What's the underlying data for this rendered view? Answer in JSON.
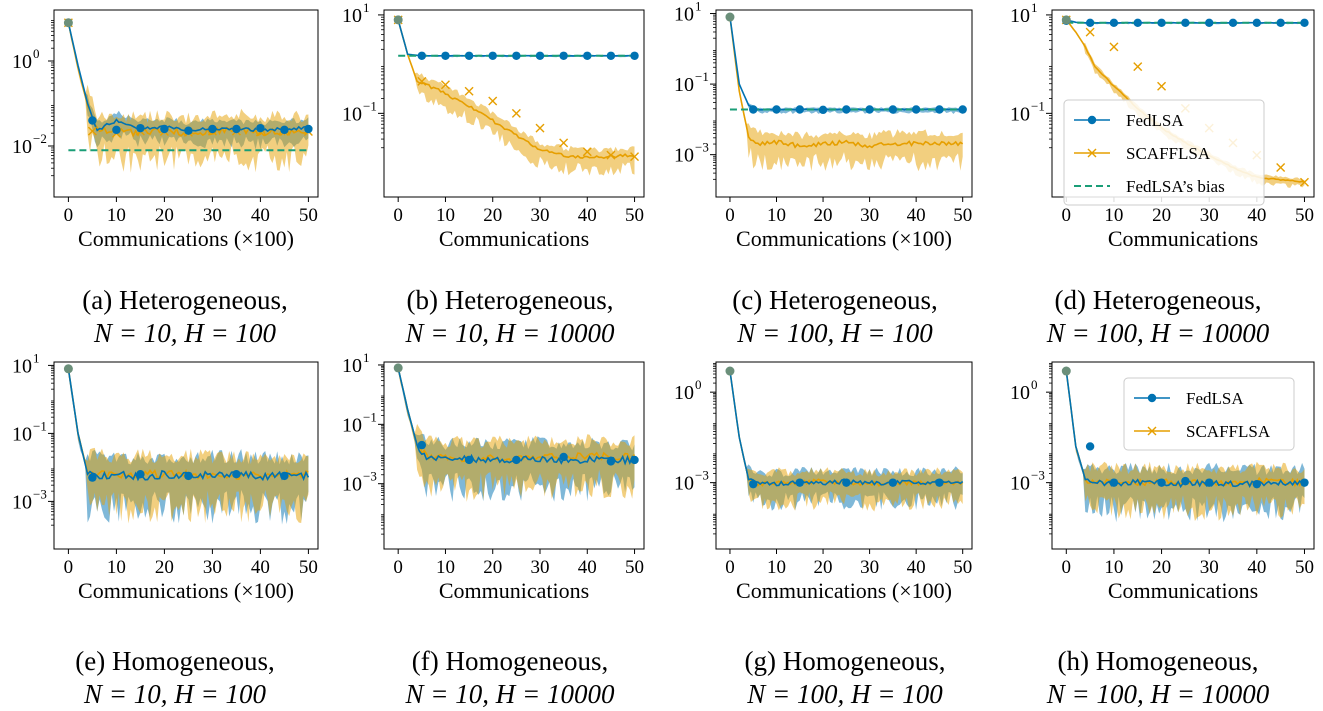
{
  "colors": {
    "fedlsa": "#0072b2",
    "scafflsa": "#e69f00",
    "bias": "#1a9e77"
  },
  "legend": {
    "fedlsa": "FedLSA",
    "scafflsa": "SCAFFLSA",
    "bias": "FedLSA’s bias"
  },
  "chart_data": [
    {
      "type": "line",
      "caption_prefix": "(a)",
      "caption_kind": "Heterogeneous,",
      "caption_eq": "N = 10, H = 100",
      "xlabel": "Communications (×100)",
      "yscale": "log",
      "ylim_log10": [
        -3.2,
        1.2
      ],
      "xlim": [
        -3,
        52
      ],
      "xticks": [
        "0",
        "10",
        "20",
        "30",
        "40",
        "50"
      ],
      "yticks": [
        {
          "label": "10",
          "exp": "0",
          "v": 0
        },
        {
          "label": "10",
          "exp": "−2",
          "v": -2
        }
      ],
      "fedlsa": [
        0.9,
        -0.1,
        -1.0,
        -1.62,
        -1.4,
        -1.6,
        -1.55,
        -1.62,
        -1.58,
        -1.6,
        -1.62,
        -1.57
      ],
      "scafflsa": [
        0.9,
        -0.15,
        -1.05,
        -1.6,
        -1.65,
        -1.7,
        -1.6,
        -1.72,
        -1.65,
        -1.6,
        -1.68,
        -1.66
      ],
      "fed_markers": [
        [
          0,
          0.9
        ],
        [
          5,
          -1.4
        ],
        [
          10,
          -1.62
        ],
        [
          15,
          -1.58
        ],
        [
          20,
          -1.6
        ],
        [
          25,
          -1.64
        ],
        [
          30,
          -1.6
        ],
        [
          35,
          -1.6
        ],
        [
          40,
          -1.58
        ],
        [
          45,
          -1.62
        ],
        [
          50,
          -1.6
        ]
      ],
      "scaff_markers": [
        [
          0,
          0.9
        ],
        [
          5,
          -1.65
        ],
        [
          10,
          -1.7
        ],
        [
          15,
          -1.65
        ],
        [
          20,
          -1.66
        ],
        [
          25,
          -1.68
        ],
        [
          30,
          -1.65
        ],
        [
          35,
          -1.65
        ],
        [
          40,
          -1.67
        ],
        [
          45,
          -1.66
        ],
        [
          50,
          -1.66
        ]
      ],
      "bias": -2.1,
      "legend": false,
      "fed_band": 0.3,
      "scaff_band": 0.6
    },
    {
      "type": "line",
      "caption_prefix": "(b)",
      "caption_kind": "Heterogeneous,",
      "caption_eq": "N = 10, H = 10000",
      "xlabel": "Communications",
      "yscale": "log",
      "ylim_log10": [
        -2.7,
        1.1
      ],
      "xlim": [
        -3,
        52
      ],
      "xticks": [
        "0",
        "10",
        "20",
        "30",
        "40",
        "50"
      ],
      "yticks": [
        {
          "label": "10",
          "exp": "1",
          "v": 1
        },
        {
          "label": "10",
          "exp": "−1",
          "v": -1
        }
      ],
      "fedlsa": [
        0.9,
        0.2,
        0.18,
        0.17,
        0.17,
        0.17,
        0.17,
        0.17,
        0.17,
        0.17,
        0.17,
        0.17
      ],
      "scafflsa": [
        0.9,
        0.2,
        -0.35,
        -0.42,
        -0.6,
        -0.85,
        -1.15,
        -1.45,
        -1.75,
        -1.85,
        -1.9,
        -1.85
      ],
      "fed_markers": [
        [
          0,
          0.9
        ],
        [
          5,
          0.17
        ],
        [
          10,
          0.17
        ],
        [
          15,
          0.17
        ],
        [
          20,
          0.17
        ],
        [
          25,
          0.17
        ],
        [
          30,
          0.17
        ],
        [
          35,
          0.17
        ],
        [
          40,
          0.17
        ],
        [
          45,
          0.17
        ],
        [
          50,
          0.17
        ]
      ],
      "scaff_markers": [
        [
          0,
          0.9
        ],
        [
          5,
          -0.35
        ],
        [
          10,
          -0.42
        ],
        [
          15,
          -0.55
        ],
        [
          20,
          -0.75
        ],
        [
          25,
          -1.0
        ],
        [
          30,
          -1.3
        ],
        [
          35,
          -1.6
        ],
        [
          40,
          -1.78
        ],
        [
          45,
          -1.85
        ],
        [
          50,
          -1.88
        ]
      ],
      "bias": 0.17,
      "legend": false,
      "fed_band": 0.02,
      "scaff_band": 0.25
    },
    {
      "type": "line",
      "caption_prefix": "(c)",
      "caption_kind": "Heterogeneous,",
      "caption_eq": "N = 100, H = 100",
      "xlabel": "Communications (×100)",
      "yscale": "log",
      "ylim_log10": [
        -4.2,
        1.1
      ],
      "xlim": [
        -3,
        52
      ],
      "xticks": [
        "0",
        "10",
        "20",
        "30",
        "40",
        "50"
      ],
      "yticks": [
        {
          "label": "10",
          "exp": "1",
          "v": 1
        },
        {
          "label": "10",
          "exp": "−1",
          "v": -1
        },
        {
          "label": "10",
          "exp": "−3",
          "v": -3
        }
      ],
      "fedlsa": [
        0.9,
        -1.0,
        -1.6,
        -1.72,
        -1.72,
        -1.72,
        -1.72,
        -1.72,
        -1.72,
        -1.72,
        -1.72,
        -1.72
      ],
      "scafflsa": [
        0.9,
        -1.2,
        -2.5,
        -2.7,
        -2.65,
        -2.75,
        -2.7,
        -2.65,
        -2.75,
        -2.7,
        -2.68,
        -2.7
      ],
      "fed_markers": [
        [
          0,
          0.9
        ],
        [
          5,
          -1.72
        ],
        [
          10,
          -1.72
        ],
        [
          15,
          -1.72
        ],
        [
          20,
          -1.73
        ],
        [
          25,
          -1.72
        ],
        [
          30,
          -1.72
        ],
        [
          35,
          -1.72
        ],
        [
          40,
          -1.72
        ],
        [
          45,
          -1.72
        ],
        [
          50,
          -1.72
        ]
      ],
      "scaff_markers": [],
      "bias": -1.72,
      "legend": false,
      "fed_band": 0.08,
      "scaff_band": 0.5
    },
    {
      "type": "line",
      "caption_prefix": "(d)",
      "caption_kind": "Heterogeneous,",
      "caption_eq": "N = 100, H = 10000",
      "xlabel": "Communications",
      "yscale": "log",
      "ylim_log10": [
        -2.7,
        1.1
      ],
      "xlim": [
        -3,
        52
      ],
      "xticks": [
        "0",
        "10",
        "20",
        "30",
        "40",
        "50"
      ],
      "yticks": [
        {
          "label": "10",
          "exp": "1",
          "v": 1
        },
        {
          "label": "10",
          "exp": "−1",
          "v": -1
        }
      ],
      "fedlsa": [
        0.9,
        0.85,
        0.84,
        0.84,
        0.84,
        0.84,
        0.84,
        0.84,
        0.84,
        0.84,
        0.84,
        0.84
      ],
      "scafflsa": [
        0.9,
        0.65,
        0.35,
        -0.05,
        -0.45,
        -0.9,
        -1.3,
        -1.6,
        -1.85,
        -2.1,
        -2.3,
        -2.4
      ],
      "fed_markers": [
        [
          0,
          0.88
        ],
        [
          5,
          0.84
        ],
        [
          10,
          0.84
        ],
        [
          15,
          0.84
        ],
        [
          20,
          0.84
        ],
        [
          25,
          0.84
        ],
        [
          30,
          0.84
        ],
        [
          35,
          0.84
        ],
        [
          40,
          0.84
        ],
        [
          45,
          0.84
        ],
        [
          50,
          0.84
        ]
      ],
      "scaff_markers": [
        [
          0,
          0.9
        ],
        [
          5,
          0.65
        ],
        [
          10,
          0.35
        ],
        [
          15,
          -0.05
        ],
        [
          20,
          -0.45
        ],
        [
          25,
          -0.9
        ],
        [
          30,
          -1.3
        ],
        [
          35,
          -1.6
        ],
        [
          40,
          -1.85
        ],
        [
          45,
          -2.1
        ],
        [
          50,
          -2.4
        ]
      ],
      "bias": 0.84,
      "legend": "bias",
      "fed_band": 0.02,
      "scaff_band": 0.1
    },
    {
      "type": "line",
      "caption_prefix": "(e)",
      "caption_kind": "Homogeneous,",
      "caption_eq": "N = 10, H = 100",
      "xlabel": "Communications (×100)",
      "yscale": "log",
      "ylim_log10": [
        -4.4,
        1.1
      ],
      "xlim": [
        -3,
        52
      ],
      "xticks": [
        "0",
        "10",
        "20",
        "30",
        "40",
        "50"
      ],
      "yticks": [
        {
          "label": "10",
          "exp": "1",
          "v": 1
        },
        {
          "label": "10",
          "exp": "−1",
          "v": -1
        },
        {
          "label": "10",
          "exp": "−3",
          "v": -3
        }
      ],
      "fedlsa": [
        0.9,
        -1.0,
        -2.2,
        -2.25,
        -2.2,
        -2.3,
        -2.2,
        -2.25,
        -2.22,
        -2.2,
        -2.25,
        -2.25
      ],
      "scafflsa": [
        0.9,
        -1.0,
        -2.15,
        -2.2,
        -2.25,
        -2.2,
        -2.2,
        -2.22,
        -2.2,
        -2.25,
        -2.2,
        -2.2
      ],
      "fed_markers": [
        [
          0,
          0.9
        ],
        [
          5,
          -2.3
        ],
        [
          15,
          -2.2
        ],
        [
          25,
          -2.25
        ],
        [
          35,
          -2.2
        ],
        [
          45,
          -2.25
        ]
      ],
      "scaff_markers": [],
      "bias": null,
      "legend": false,
      "fed_band": 0.9,
      "scaff_band": 0.9
    },
    {
      "type": "line",
      "caption_prefix": "(f)",
      "caption_kind": "Homogeneous,",
      "caption_eq": "N = 10, H = 10000",
      "xlabel": "Communications",
      "yscale": "log",
      "ylim_log10": [
        -5.2,
        1.1
      ],
      "xlim": [
        -3,
        52
      ],
      "xticks": [
        "0",
        "10",
        "20",
        "30",
        "40",
        "50"
      ],
      "yticks": [
        {
          "label": "10",
          "exp": "1",
          "v": 1
        },
        {
          "label": "10",
          "exp": "−1",
          "v": -1
        },
        {
          "label": "10",
          "exp": "−3",
          "v": -3
        }
      ],
      "fedlsa": [
        0.9,
        -0.5,
        -1.7,
        -2.1,
        -2.2,
        -2.15,
        -2.2,
        -2.2,
        -2.15,
        -2.2,
        -2.2,
        -2.2
      ],
      "scafflsa": [
        0.9,
        -0.5,
        -1.7,
        -2.05,
        -2.1,
        -2.2,
        -2.1,
        -2.15,
        -2.1,
        -2.1,
        -2.05,
        -2.1
      ],
      "fed_markers": [
        [
          0,
          0.9
        ],
        [
          5,
          -1.7
        ],
        [
          15,
          -2.2
        ],
        [
          25,
          -2.2
        ],
        [
          35,
          -2.1
        ],
        [
          45,
          -2.25
        ],
        [
          50,
          -2.2
        ]
      ],
      "scaff_markers": [],
      "bias": null,
      "legend": false,
      "fed_band": 0.9,
      "scaff_band": 0.9
    },
    {
      "type": "line",
      "caption_prefix": "(g)",
      "caption_kind": "Homogeneous,",
      "caption_eq": "N = 100, H = 100",
      "xlabel": "Communications (×100)",
      "yscale": "log",
      "ylim_log10": [
        -5.2,
        1.0
      ],
      "xlim": [
        -3,
        52
      ],
      "xticks": [
        "0",
        "10",
        "20",
        "30",
        "40",
        "50"
      ],
      "yticks": [
        {
          "label": "10",
          "exp": "0",
          "v": 0
        },
        {
          "label": "10",
          "exp": "−3",
          "v": -3
        }
      ],
      "fedlsa": [
        0.7,
        -1.5,
        -2.9,
        -3.0,
        -3.05,
        -2.95,
        -3.0,
        -2.95,
        -3.0,
        -3.0,
        -3.0,
        -2.95
      ],
      "scafflsa": [
        0.7,
        -1.5,
        -2.9,
        -3.05,
        -3.0,
        -3.0,
        -2.95,
        -3.0,
        -3.05,
        -3.0,
        -3.0,
        -3.0
      ],
      "fed_markers": [
        [
          0,
          0.7
        ],
        [
          5,
          -3.05
        ],
        [
          15,
          -3.0
        ],
        [
          25,
          -3.0
        ],
        [
          35,
          -3.0
        ],
        [
          45,
          -3.0
        ]
      ],
      "scaff_markers": [],
      "bias": null,
      "legend": false,
      "fed_band": 0.6,
      "scaff_band": 0.6
    },
    {
      "type": "line",
      "caption_prefix": "(h)",
      "caption_kind": "Homogeneous,",
      "caption_eq": "N = 100, H = 10000",
      "xlabel": "Communications",
      "yscale": "log",
      "ylim_log10": [
        -5.2,
        1.0
      ],
      "xlim": [
        -3,
        52
      ],
      "xticks": [
        "0",
        "10",
        "20",
        "30",
        "40",
        "50"
      ],
      "yticks": [
        {
          "label": "10",
          "exp": "0",
          "v": 0
        },
        {
          "label": "10",
          "exp": "−3",
          "v": -3
        }
      ],
      "fedlsa": [
        0.7,
        -1.8,
        -2.9,
        -3.0,
        -3.05,
        -3.0,
        -3.0,
        -3.05,
        -3.0,
        -3.05,
        -3.05,
        -3.0
      ],
      "scafflsa": [
        0.7,
        -1.8,
        -2.9,
        -2.95,
        -3.0,
        -3.0,
        -2.95,
        -3.0,
        -3.0,
        -3.0,
        -2.95,
        -3.0
      ],
      "fed_markers": [
        [
          0,
          0.7
        ],
        [
          5,
          -1.8
        ],
        [
          10,
          -3.0
        ],
        [
          20,
          -3.0
        ],
        [
          25,
          -2.95
        ],
        [
          30,
          -3.0
        ],
        [
          40,
          -3.05
        ],
        [
          50,
          -3.0
        ]
      ],
      "scaff_markers": [],
      "bias": null,
      "legend": "simple",
      "fed_band": 0.8,
      "scaff_band": 0.8
    }
  ]
}
